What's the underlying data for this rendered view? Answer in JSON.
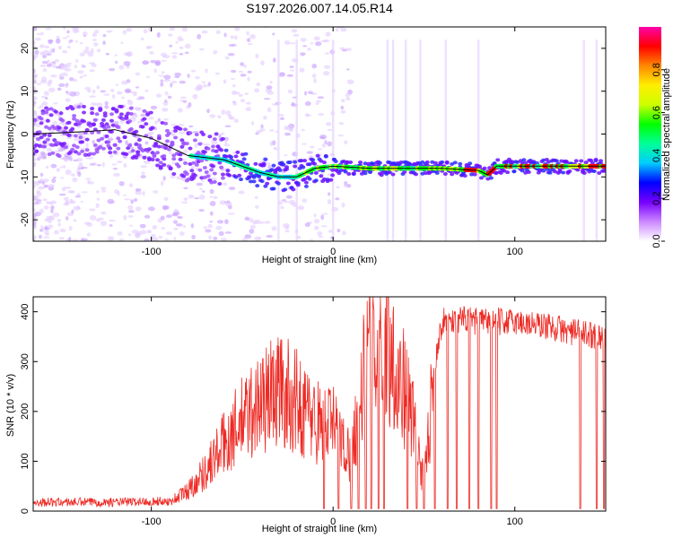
{
  "title": "S197.2026.007.14.05.R14",
  "chart_data": [
    {
      "type": "heatmap",
      "name": "spectrogram",
      "xlabel": "Height of straight line (km)",
      "ylabel": "Frequency (Hz)",
      "xlim": [
        -165,
        150
      ],
      "ylim": [
        -25,
        25
      ],
      "xticks": [
        -100,
        0,
        100
      ],
      "yticks": [
        -20,
        -10,
        0,
        10,
        20
      ],
      "ridge_line": {
        "x": [
          -165,
          -140,
          -120,
          -100,
          -80,
          -60,
          -40,
          -30,
          -20,
          -10,
          0,
          20,
          40,
          60,
          80,
          85,
          90,
          100,
          150
        ],
        "y": [
          0,
          0.5,
          1,
          -1,
          -5,
          -6,
          -9,
          -10,
          -10,
          -8,
          -7.5,
          -8,
          -8,
          -8,
          -8.5,
          -9.5,
          -7.5,
          -7.5,
          -7.5
        ]
      },
      "colorbar": {
        "label": "Normalized spectral amplitude",
        "ticks": [
          "0.0",
          "0.2",
          "0.4",
          "0.6",
          "0.8"
        ],
        "range": [
          0,
          1
        ],
        "colors": [
          "#ffffff",
          "#cc88ff",
          "#7700ff",
          "#0000ff",
          "#00ccff",
          "#00ff99",
          "#00ff00",
          "#ccff00",
          "#ffee00",
          "#ff8800",
          "#ff0000",
          "#ff00aa"
        ]
      }
    },
    {
      "type": "line",
      "name": "snr",
      "xlabel": "Height of straight line (km)",
      "ylabel": "SNR (10 * v/v)",
      "xlim": [
        -165,
        150
      ],
      "ylim": [
        0,
        430
      ],
      "xticks": [
        -100,
        0,
        100
      ],
      "yticks": [
        0,
        100,
        200,
        300,
        400
      ],
      "color": "#ee2a24",
      "series_envelope": {
        "x": [
          -165,
          -120,
          -90,
          -80,
          -70,
          -60,
          -50,
          -40,
          -30,
          -20,
          -10,
          0,
          5,
          10,
          15,
          20,
          25,
          30,
          35,
          40,
          45,
          50,
          55,
          60,
          70,
          80,
          90,
          100,
          110,
          120,
          130,
          140,
          150
        ],
        "y": [
          18,
          18,
          20,
          45,
          90,
          150,
          200,
          240,
          270,
          240,
          200,
          190,
          150,
          120,
          250,
          370,
          400,
          380,
          310,
          260,
          180,
          60,
          280,
          380,
          385,
          380,
          380,
          380,
          375,
          370,
          360,
          355,
          350
        ]
      },
      "dropouts": [
        -5,
        3,
        10,
        14,
        18,
        21,
        25,
        28,
        41,
        46,
        50,
        56,
        63,
        68,
        75,
        80,
        87,
        90,
        136,
        145,
        149
      ]
    }
  ]
}
